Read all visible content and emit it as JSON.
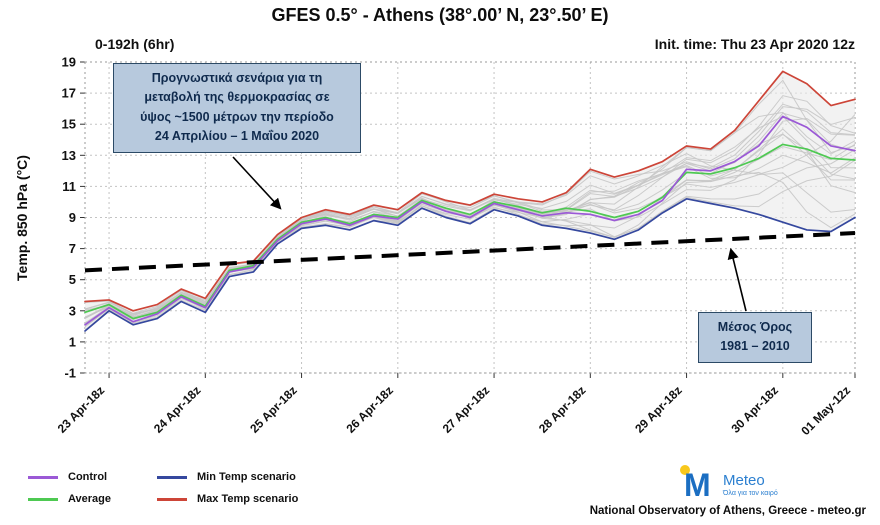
{
  "title": "GFES 0.5° - Athens (38°.00’ N, 23°.50’ E)",
  "subtitle_left": "0-192h (6hr)",
  "subtitle_right": "Init. time: Thu 23 Apr 2020 12z",
  "y_axis_label": "Temp. 850 hPa (°C)",
  "annotation_scenarios": {
    "lines": [
      "Προγνωστικά σενάρια για τη",
      "μεταβολή της θερμοκρασίας σε",
      "ύψος ~1500 μέτρων την περίοδο",
      "24 Απριλίου – 1 Μαΐου 2020"
    ]
  },
  "annotation_mean": {
    "lines": [
      "Μέσος Όρος",
      "1981 – 2010"
    ]
  },
  "legend": [
    {
      "label": "Control",
      "color": "#9b59d6"
    },
    {
      "label": "Average",
      "color": "#4ec952"
    },
    {
      "label": "Min Temp scenario",
      "color": "#35489e"
    },
    {
      "label": "Max Temp scenario",
      "color": "#cd4538"
    }
  ],
  "footer": {
    "brand_initial": "M",
    "brand": "Meteo",
    "brand_tagline": "Όλα για τον καιρό",
    "credit": "National Observatory of Athens, Greece - meteo.gr"
  },
  "chart_data": {
    "type": "line",
    "title": "GFES 0.5° - Athens (38°.00’ N, 23°.50’ E)",
    "xlabel": "",
    "ylabel": "Temp. 850 hPa (°C)",
    "ylim": [
      -1,
      19
    ],
    "y_ticks": [
      -1,
      1,
      3,
      5,
      7,
      9,
      11,
      13,
      15,
      17,
      19
    ],
    "x_hours": [
      0,
      6,
      12,
      18,
      24,
      30,
      36,
      42,
      48,
      54,
      60,
      66,
      72,
      78,
      84,
      90,
      96,
      102,
      108,
      114,
      120,
      126,
      132,
      138,
      144,
      150,
      156,
      162,
      168,
      174,
      180,
      186,
      192
    ],
    "x_tick_hours": [
      6,
      30,
      54,
      78,
      102,
      126,
      150,
      174,
      192
    ],
    "x_tick_labels": [
      "23 Apr-18z",
      "24 Apr-18z",
      "25 Apr-18z",
      "26 Apr-18z",
      "27 Apr-18z",
      "28 Apr-18z",
      "29 Apr-18z",
      "30 Apr-18z",
      "01 May-12z"
    ],
    "grid": "dotted",
    "legend_position": "bottom-left",
    "series": [
      {
        "name": "Control",
        "color": "#9b59d6",
        "values": [
          2.1,
          3.2,
          2.3,
          2.8,
          3.9,
          3.2,
          5.5,
          5.8,
          7.5,
          8.6,
          8.9,
          8.5,
          9.1,
          8.9,
          10.0,
          9.4,
          9.0,
          9.9,
          9.5,
          9.1,
          9.3,
          9.2,
          8.8,
          9.2,
          10.1,
          12.1,
          12.0,
          12.6,
          13.6,
          15.5,
          14.8,
          13.6,
          13.3
        ]
      },
      {
        "name": "Average",
        "color": "#4ec952",
        "values": [
          2.9,
          3.4,
          2.5,
          2.9,
          4.0,
          3.3,
          5.6,
          5.9,
          7.6,
          8.7,
          9.0,
          8.6,
          9.2,
          9.0,
          10.1,
          9.6,
          9.2,
          10.0,
          9.7,
          9.3,
          9.6,
          9.4,
          9.0,
          9.4,
          10.3,
          11.9,
          11.8,
          12.2,
          12.8,
          13.7,
          13.4,
          12.8,
          12.7
        ]
      },
      {
        "name": "Min Temp scenario",
        "color": "#35489e",
        "values": [
          1.7,
          3.0,
          2.1,
          2.5,
          3.6,
          2.9,
          5.2,
          5.5,
          7.3,
          8.3,
          8.5,
          8.2,
          8.8,
          8.5,
          9.6,
          9.0,
          8.6,
          9.5,
          9.1,
          8.5,
          8.3,
          8.0,
          7.6,
          8.2,
          9.3,
          10.2,
          9.9,
          9.6,
          9.2,
          8.7,
          8.2,
          8.1,
          9.0
        ]
      },
      {
        "name": "Max Temp scenario",
        "color": "#cd4538",
        "values": [
          3.6,
          3.7,
          3.0,
          3.4,
          4.4,
          3.8,
          6.0,
          6.2,
          7.9,
          9.0,
          9.5,
          9.2,
          9.8,
          9.5,
          10.6,
          10.1,
          9.8,
          10.5,
          10.2,
          10.0,
          10.6,
          12.1,
          11.6,
          12.0,
          12.6,
          13.6,
          13.4,
          14.6,
          16.5,
          18.4,
          17.6,
          16.2,
          16.6
        ]
      }
    ],
    "climatology": {
      "name": "Μέσος Όρος 1981 – 2010",
      "style": "dashed",
      "color": "#000000",
      "endpoints_hours": [
        0,
        192
      ],
      "endpoints_values": [
        5.6,
        8.0
      ]
    },
    "ensemble": {
      "description": "gray ensemble member traces filling the min–max envelope",
      "count": 18,
      "line_color": "#c6c6c6",
      "band_fill": "#eaeaea"
    }
  }
}
